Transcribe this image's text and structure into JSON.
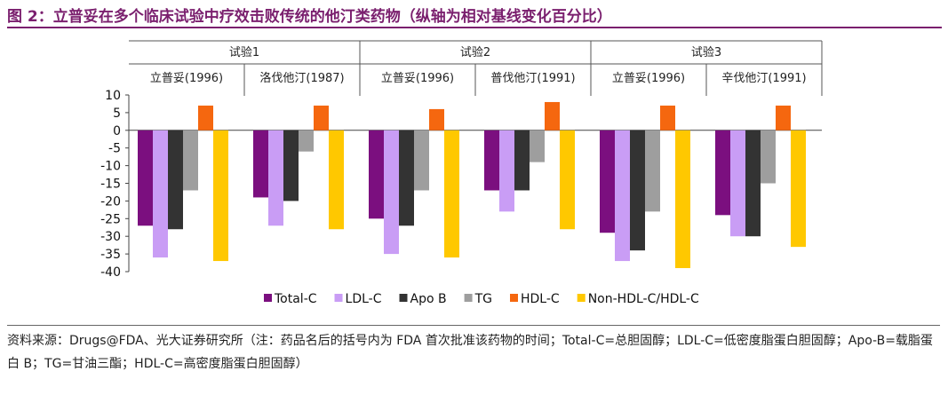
{
  "figure": {
    "title": "图 2：立普妥在多个临床试验中疗效击败传统的他汀类药物（纵轴为相对基线变化百分比）",
    "source": "资料来源：Drugs@FDA、光大证券研究所（注：药品名后的括号内为 FDA 首次批准该药物的时间；Total-C=总胆固醇；LDL-C=低密度脂蛋白胆固醇；Apo-B=载脂蛋白 B；TG=甘油三酯；HDL-C=高密度脂蛋白胆固醇）"
  },
  "chart_data": {
    "type": "bar",
    "trials": [
      "试验1",
      "试验2",
      "试验3"
    ],
    "categories": [
      "立普妥(1996)",
      "洛伐他汀(1987)",
      "立普妥(1996)",
      "普伐他汀(1991)",
      "立普妥(1996)",
      "辛伐他汀(1991)"
    ],
    "ylim": [
      -40,
      10
    ],
    "yticks": [
      10,
      5,
      0,
      -5,
      -10,
      -15,
      -20,
      -25,
      -30,
      -35,
      -40
    ],
    "legend_position": "bottom",
    "grid": false,
    "series": [
      {
        "name": "Total-C",
        "color": "#7b0f7f",
        "values": [
          -27,
          -19,
          -25,
          -17,
          -29,
          -24
        ]
      },
      {
        "name": "LDL-C",
        "color": "#c99df5",
        "values": [
          -36,
          -27,
          -35,
          -23,
          -37,
          -30
        ]
      },
      {
        "name": "Apo B",
        "color": "#333333",
        "values": [
          -28,
          -20,
          -27,
          -17,
          -34,
          -30
        ]
      },
      {
        "name": "TG",
        "color": "#9e9e9e",
        "values": [
          -17,
          -6,
          -17,
          -9,
          -23,
          -15
        ]
      },
      {
        "name": "HDL-C",
        "color": "#f5670f",
        "values": [
          7,
          7,
          6,
          8,
          7,
          7
        ]
      },
      {
        "name": "Non-HDL-C/HDL-C",
        "color": "#ffc800",
        "values": [
          -37,
          -28,
          -36,
          -28,
          -39,
          -33
        ]
      }
    ]
  }
}
